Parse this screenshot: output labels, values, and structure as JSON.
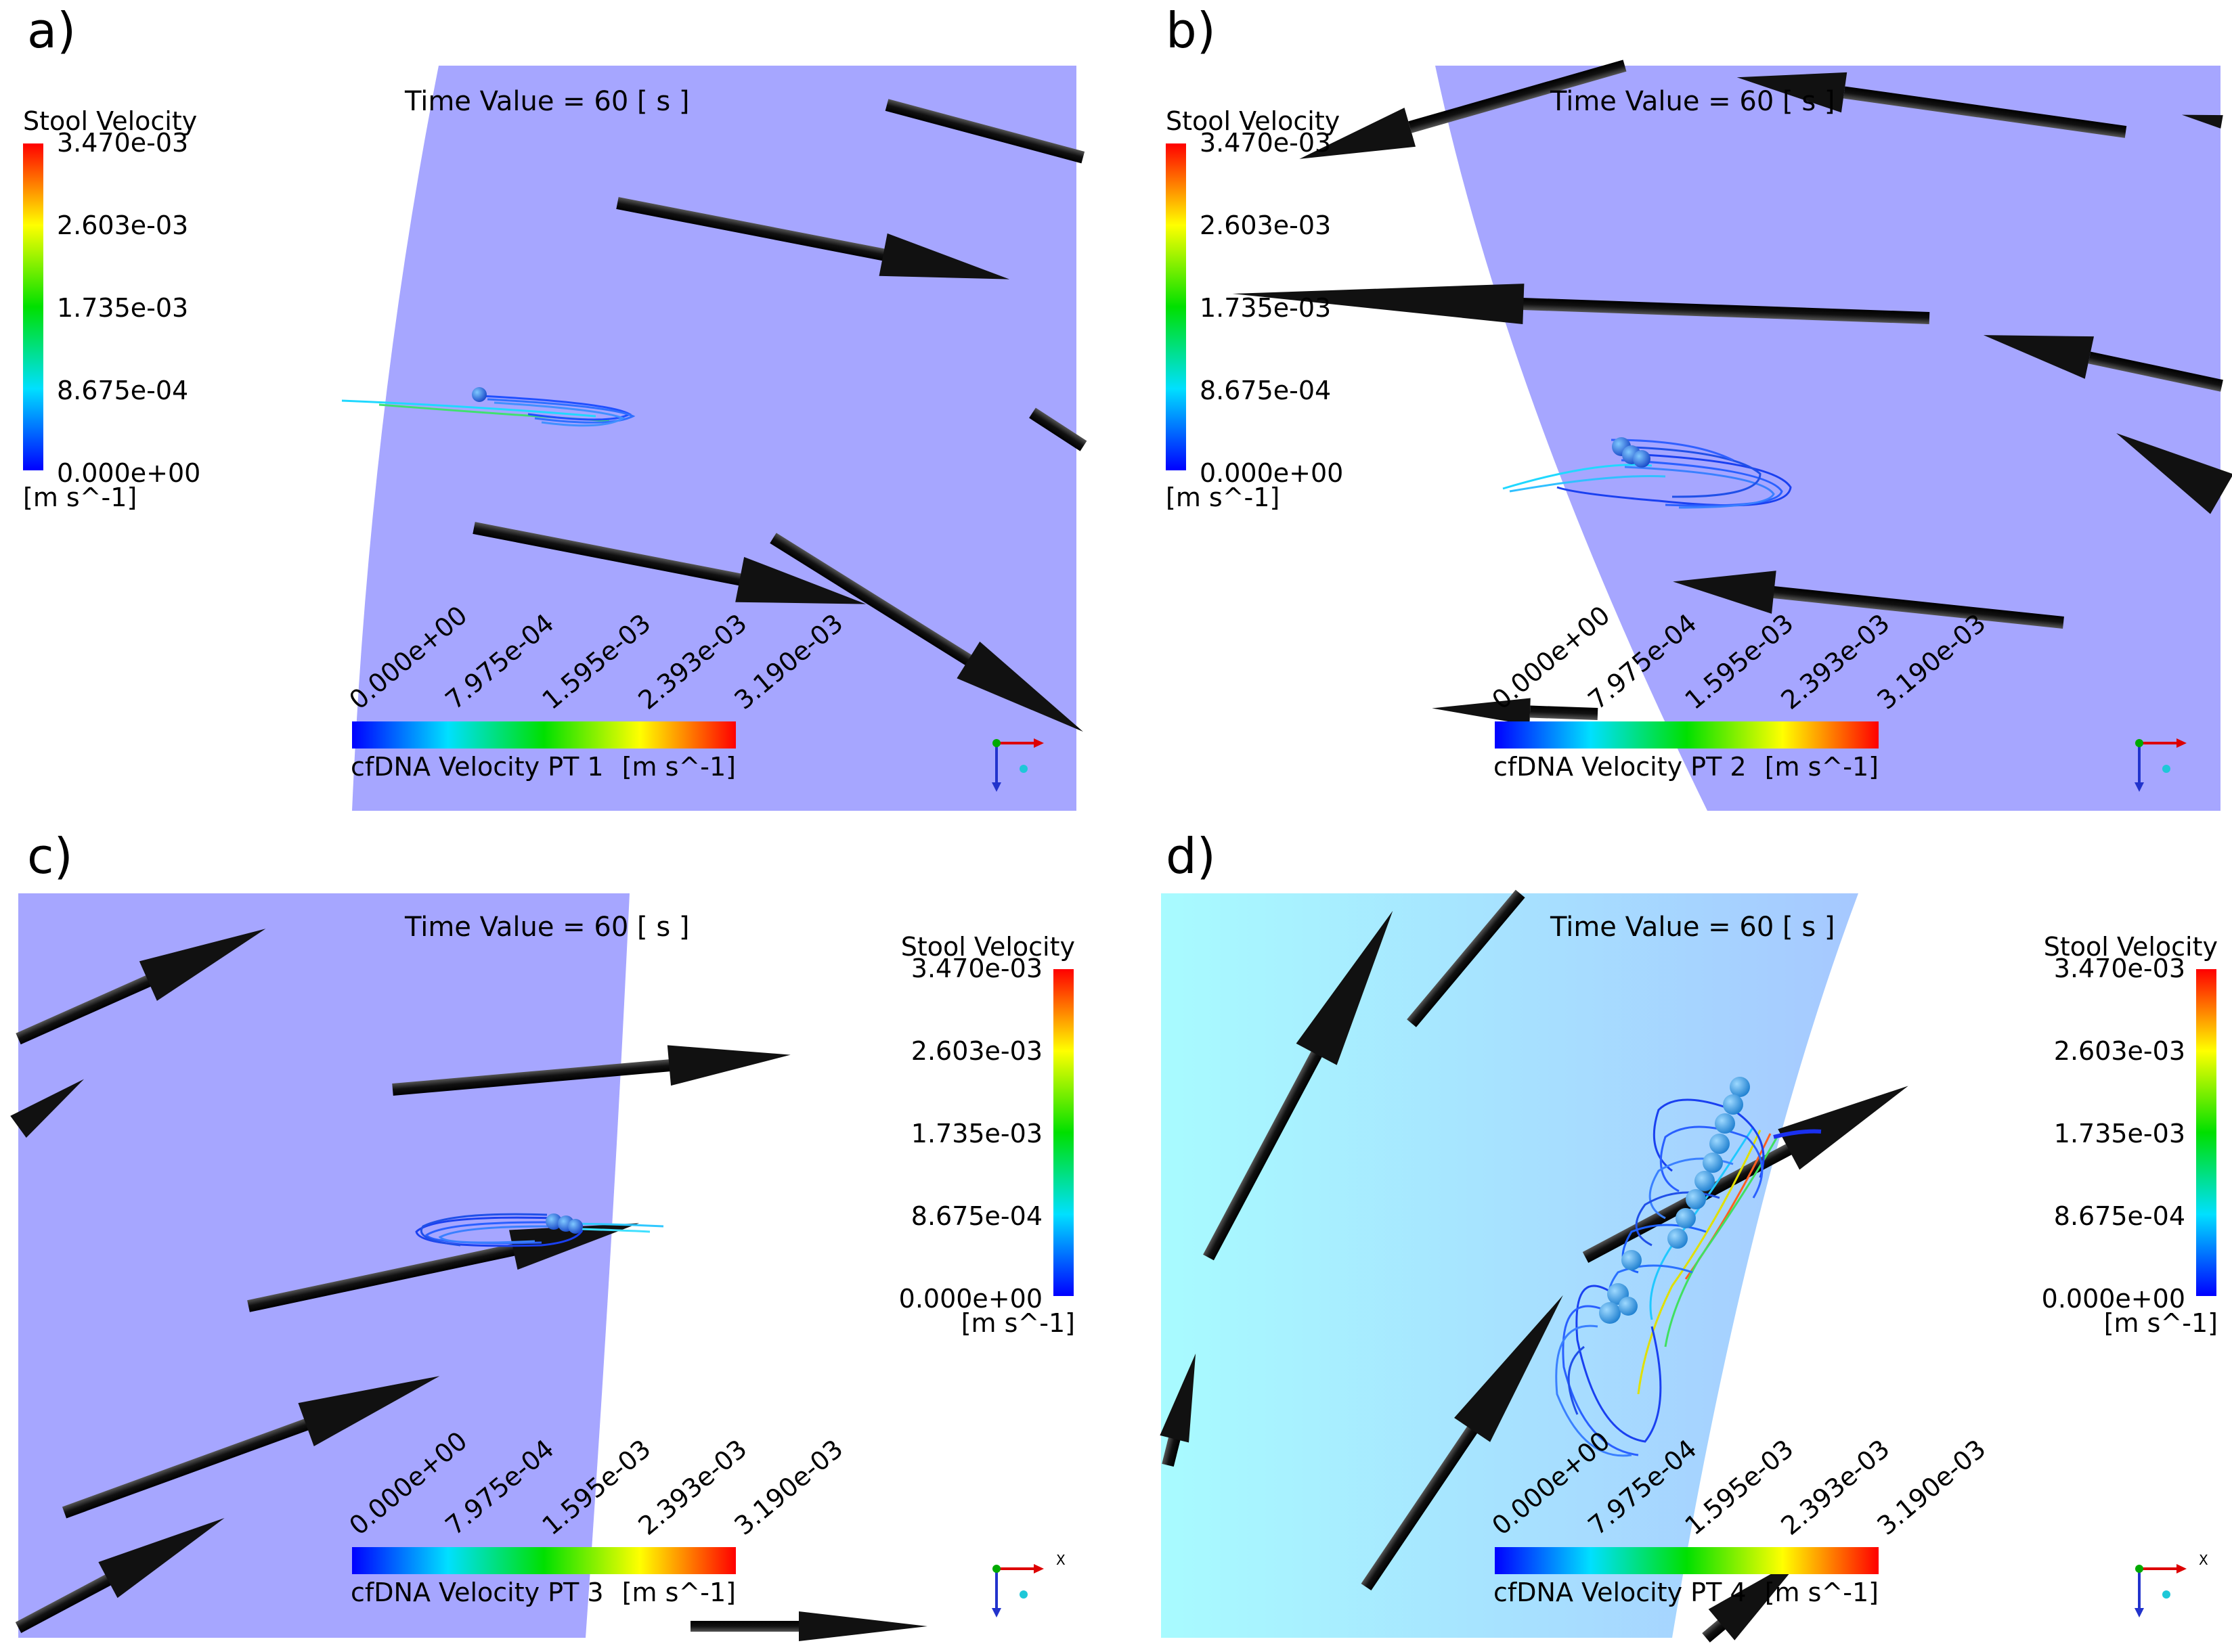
{
  "panels": [
    {
      "label": "a)",
      "time_label": "Time Value = 60 [ s ]",
      "stool_legend": {
        "title": "Stool Velocity",
        "ticks": [
          "3.470e-03",
          "2.603e-03",
          "1.735e-03",
          "8.675e-04",
          "0.000e+00"
        ],
        "unit": "[m s^-1]",
        "side": "left"
      },
      "cfdna_legend": {
        "title": "cfDNA Velocity PT 1",
        "ticks": [
          "0.000e+00",
          "7.975e-04",
          "1.595e-03",
          "2.393e-03",
          "3.190e-03"
        ],
        "unit": "[m s^-1]"
      },
      "domain_color": "#a6a6ff"
    },
    {
      "label": "b)",
      "time_label": "Time Value = 60 [ s ]",
      "stool_legend": {
        "title": "Stool Velocity",
        "ticks": [
          "3.470e-03",
          "2.603e-03",
          "1.735e-03",
          "8.675e-04",
          "0.000e+00"
        ],
        "unit": "[m s^-1]",
        "side": "left"
      },
      "cfdna_legend": {
        "title": "cfDNA Velocity PT 2",
        "ticks": [
          "0.000e+00",
          "7.975e-04",
          "1.595e-03",
          "2.393e-03",
          "3.190e-03"
        ],
        "unit": "[m s^-1]"
      },
      "domain_color": "#a6a6ff"
    },
    {
      "label": "c)",
      "time_label": "Time Value = 60 [ s ]",
      "stool_legend": {
        "title": "Stool Velocity",
        "ticks": [
          "3.470e-03",
          "2.603e-03",
          "1.735e-03",
          "8.675e-04",
          "0.000e+00"
        ],
        "unit": "[m s^-1]",
        "side": "right"
      },
      "cfdna_legend": {
        "title": "cfDNA Velocity PT 3",
        "ticks": [
          "0.000e+00",
          "7.975e-04",
          "1.595e-03",
          "2.393e-03",
          "3.190e-03"
        ],
        "unit": "[m s^-1]"
      },
      "domain_color": "#a6a6ff"
    },
    {
      "label": "d)",
      "time_label": "Time Value = 60 [ s ]",
      "stool_legend": {
        "title": "Stool Velocity",
        "ticks": [
          "3.470e-03",
          "2.603e-03",
          "1.735e-03",
          "8.675e-04",
          "0.000e+00"
        ],
        "unit": "[m s^-1]",
        "side": "right"
      },
      "cfdna_legend": {
        "title": "cfDNA Velocity PT 4",
        "ticks": [
          "0.000e+00",
          "7.975e-04",
          "1.595e-03",
          "2.393e-03",
          "3.190e-03"
        ],
        "unit": "[m s^-1]"
      },
      "domain_color": "#a9f0ff"
    }
  ],
  "axis_triad": {
    "x_label": "X"
  },
  "colors": {
    "arrow": "#111111",
    "particle": "#1a3ad8",
    "particle_light": "#2f9fe6"
  }
}
